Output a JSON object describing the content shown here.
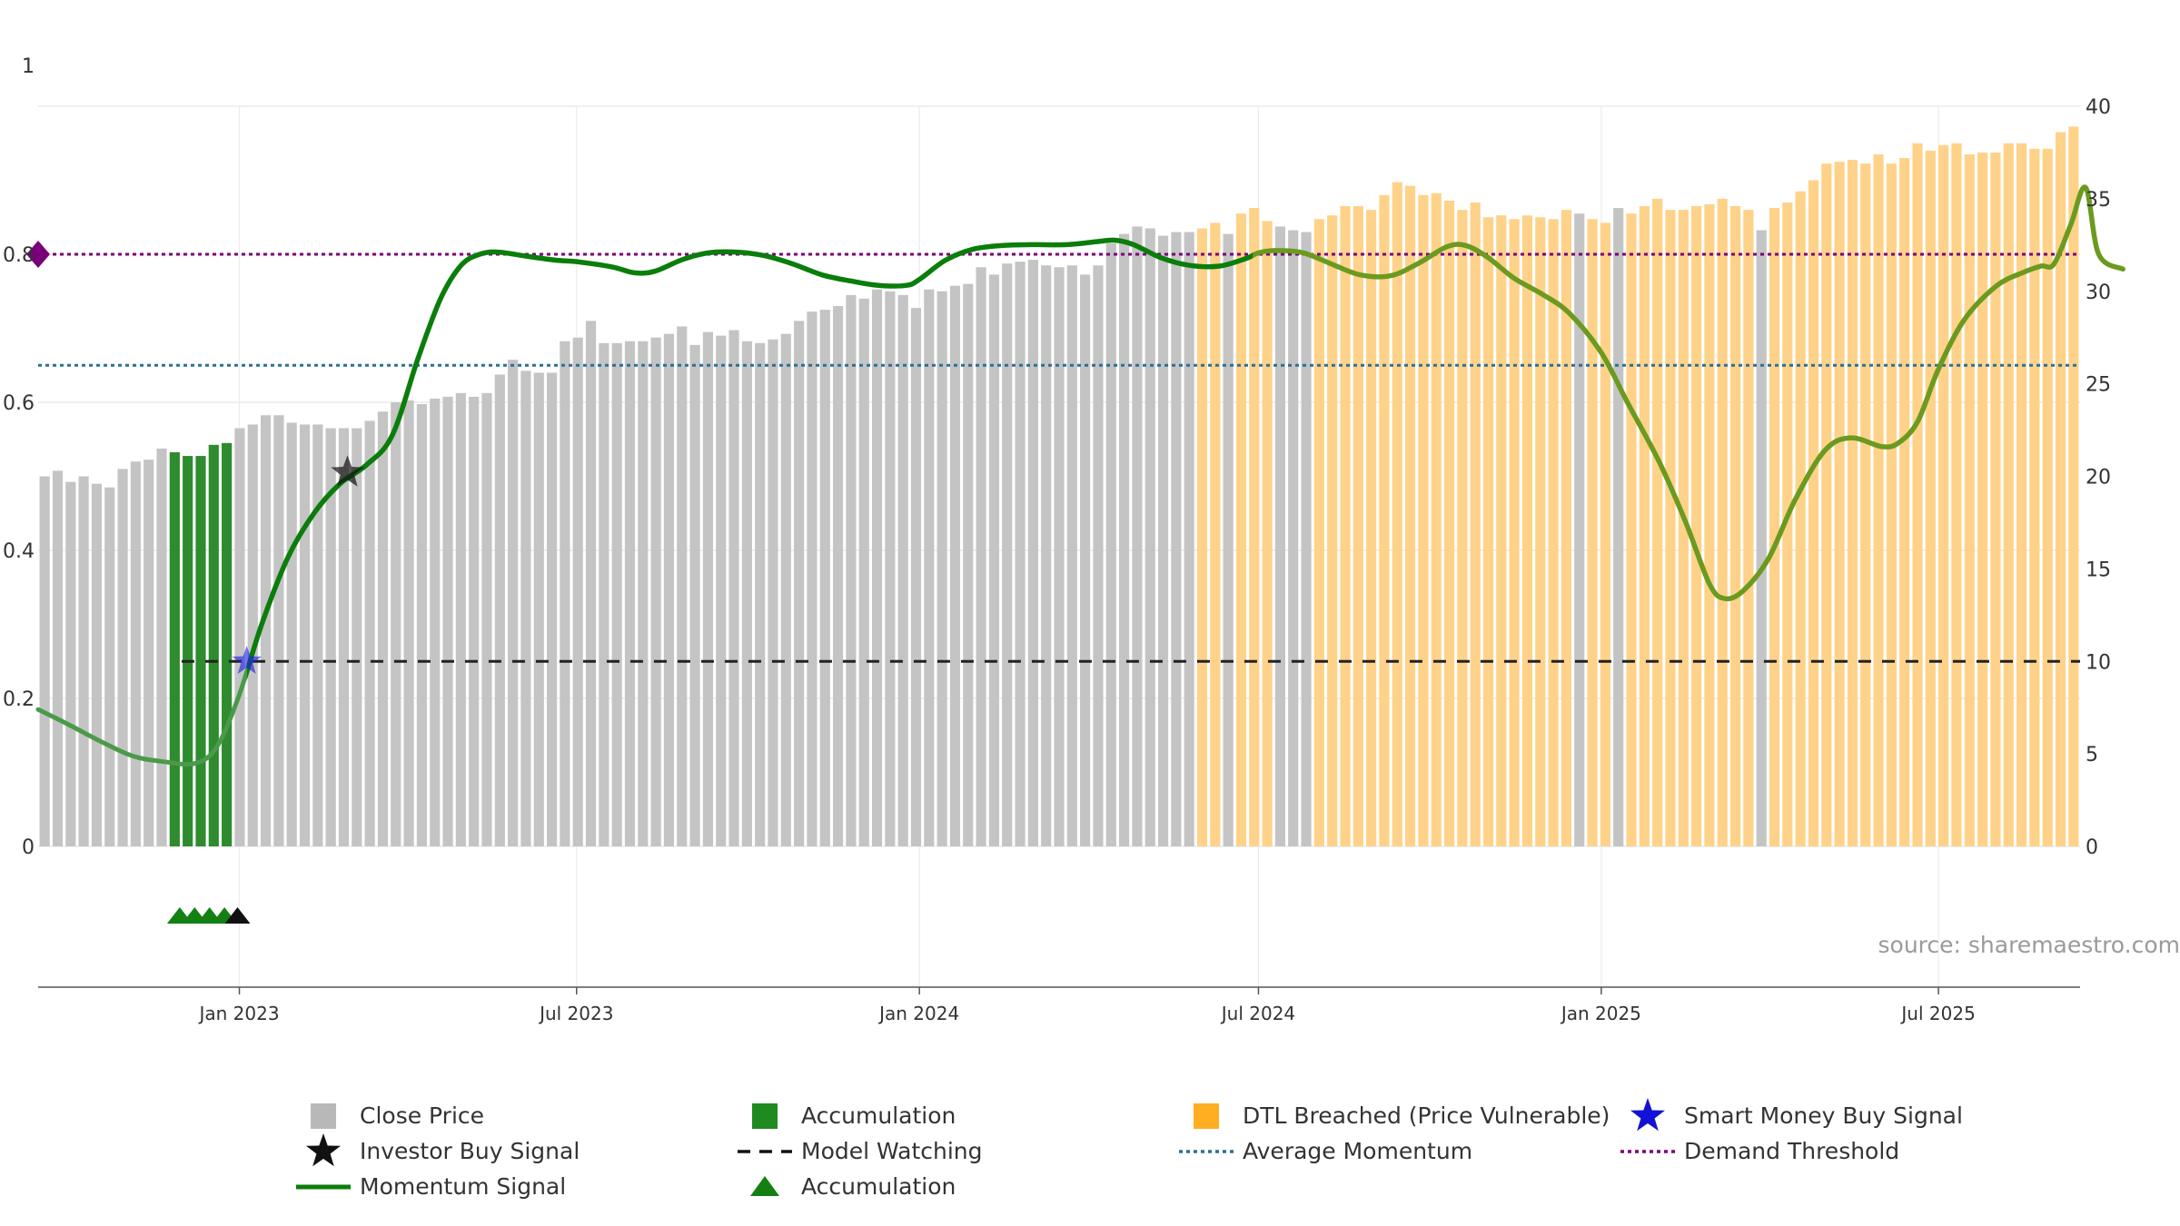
{
  "chart_data": {
    "type": "bar",
    "title": "",
    "xlabel": "",
    "y_left": {
      "ticks": [
        "0",
        "0.2",
        "0.4",
        "0.6",
        "0.8",
        "1"
      ],
      "range": [
        0,
        1
      ],
      "label": ""
    },
    "y_right": {
      "ticks": [
        "0",
        "5",
        "10",
        "15",
        "20",
        "25",
        "30",
        "35",
        "40"
      ],
      "range": [
        0,
        40
      ],
      "label": ""
    },
    "x_axis": {
      "start_date": "2022-09-15",
      "end_date": "2025-09-15",
      "ticks": [
        {
          "date": "2023-01-01",
          "label": "Jan 2023"
        },
        {
          "date": "2023-07-01",
          "label": "Jul 2023"
        },
        {
          "date": "2024-01-01",
          "label": "Jan 2024"
        },
        {
          "date": "2024-07-01",
          "label": "Jul 2024"
        },
        {
          "date": "2025-01-01",
          "label": "Jan 2025"
        },
        {
          "date": "2025-07-01",
          "label": "Jul 2025"
        }
      ]
    },
    "grid": true,
    "colors": {
      "close": "#c4c4c4",
      "accumulation": "#2e8b2e",
      "dtl": "#ffd28a",
      "momentum": "#0a7d0a",
      "momentum_dtl": "#6b9a1f",
      "average": "#2c7096",
      "demand": "#7a007a",
      "watching": "#222222",
      "smart_money": "#1a1ae6",
      "investor": "#111111",
      "marker_green": "#138013"
    },
    "close_price": [
      20,
      20.3,
      19.7,
      20,
      19.6,
      19.4,
      20.4,
      20.8,
      20.9,
      21.5,
      21.3,
      21.1,
      21.1,
      21.7,
      21.8,
      22.6,
      22.8,
      23.3,
      23.3,
      22.9,
      22.8,
      22.8,
      22.6,
      22.6,
      22.6,
      23,
      23.5,
      24,
      24.1,
      23.9,
      24.2,
      24.3,
      24.5,
      24.3,
      24.5,
      25.5,
      26.3,
      25.7,
      25.6,
      25.6,
      27.3,
      27.5,
      28.4,
      27.2,
      27.2,
      27.3,
      27.3,
      27.5,
      27.7,
      28.1,
      27.1,
      27.8,
      27.6,
      27.9,
      27.3,
      27.2,
      27.4,
      27.7,
      28.4,
      28.9,
      29,
      29.2,
      29.8,
      29.6,
      30.1,
      30,
      29.8,
      29.1,
      30.1,
      30,
      30.3,
      30.4,
      31.3,
      30.9,
      31.5,
      31.6,
      31.7,
      31.4,
      31.3,
      31.4,
      30.9,
      31.4,
      32.6,
      33.1,
      33.5,
      33.4,
      33,
      33.2,
      33.2,
      33.4,
      33.7,
      33.1,
      34.2,
      34.5,
      33.8,
      33.5,
      33.3,
      33.2,
      33.9,
      34.1,
      34.6,
      34.6,
      34.4,
      35.2,
      35.9,
      35.7,
      35.2,
      35.3,
      34.9,
      34.4,
      34.8,
      34,
      34.1,
      33.9,
      34.1,
      34,
      33.9,
      34.4,
      34.2,
      33.9,
      33.7,
      34.5,
      34.2,
      34.6,
      35,
      34.4,
      34.4,
      34.6,
      34.7,
      35,
      34.6,
      34.4,
      33.3,
      34.5,
      34.8,
      35.4,
      36,
      36.9,
      37,
      37.1,
      36.9,
      37.4,
      36.9,
      37.2,
      38,
      37.6,
      37.9,
      38,
      37.4,
      37.5,
      37.5,
      38,
      38,
      37.7,
      37.7,
      38.6,
      38.9
    ],
    "bar_categories": [
      "c",
      "c",
      "c",
      "c",
      "c",
      "c",
      "c",
      "c",
      "c",
      "c",
      "a",
      "a",
      "a",
      "a",
      "a",
      "c",
      "c",
      "c",
      "c",
      "c",
      "c",
      "c",
      "c",
      "c",
      "c",
      "c",
      "c",
      "c",
      "c",
      "c",
      "c",
      "c",
      "c",
      "c",
      "c",
      "c",
      "c",
      "c",
      "c",
      "c",
      "c",
      "c",
      "c",
      "c",
      "c",
      "c",
      "c",
      "c",
      "c",
      "c",
      "c",
      "c",
      "c",
      "c",
      "c",
      "c",
      "c",
      "c",
      "c",
      "c",
      "c",
      "c",
      "c",
      "c",
      "c",
      "c",
      "c",
      "c",
      "c",
      "c",
      "c",
      "c",
      "c",
      "c",
      "c",
      "c",
      "c",
      "c",
      "c",
      "c",
      "c",
      "c",
      "c",
      "c",
      "c",
      "c",
      "c",
      "c",
      "c",
      "d",
      "d",
      "c",
      "d",
      "d",
      "d",
      "c",
      "c",
      "c",
      "d",
      "d",
      "d",
      "d",
      "d",
      "d",
      "d",
      "d",
      "d",
      "d",
      "d",
      "d",
      "d",
      "d",
      "d",
      "d",
      "d",
      "d",
      "d",
      "d",
      "c",
      "d",
      "d",
      "c",
      "d",
      "d",
      "d",
      "d",
      "d",
      "d",
      "d",
      "d",
      "d",
      "d",
      "c",
      "d",
      "d",
      "d",
      "d",
      "d",
      "d",
      "d",
      "d",
      "d",
      "d",
      "d",
      "d",
      "d",
      "d",
      "d",
      "d",
      "d",
      "d",
      "d",
      "d",
      "d",
      "d",
      "d",
      "d"
    ],
    "momentum_signal": [
      [
        "2022-09-15",
        0.185
      ],
      [
        "2022-10-01",
        0.165
      ],
      [
        "2022-10-20",
        0.14
      ],
      [
        "2022-11-05",
        0.122
      ],
      [
        "2022-11-20",
        0.115
      ],
      [
        "2022-12-08",
        0.112
      ],
      [
        "2022-12-20",
        0.135
      ],
      [
        "2023-01-01",
        0.205
      ],
      [
        "2023-01-13",
        0.3
      ],
      [
        "2023-01-27",
        0.39
      ],
      [
        "2023-02-10",
        0.45
      ],
      [
        "2023-02-24",
        0.49
      ],
      [
        "2023-03-10",
        0.515
      ],
      [
        "2023-03-24",
        0.555
      ],
      [
        "2023-04-07",
        0.66
      ],
      [
        "2023-04-19",
        0.74
      ],
      [
        "2023-04-30",
        0.785
      ],
      [
        "2023-05-10",
        0.8
      ],
      [
        "2023-05-20",
        0.803
      ],
      [
        "2023-06-05",
        0.797
      ],
      [
        "2023-06-20",
        0.792
      ],
      [
        "2023-07-01",
        0.79
      ],
      [
        "2023-07-20",
        0.783
      ],
      [
        "2023-08-01",
        0.775
      ],
      [
        "2023-08-12",
        0.777
      ],
      [
        "2023-08-27",
        0.793
      ],
      [
        "2023-09-10",
        0.802
      ],
      [
        "2023-09-25",
        0.803
      ],
      [
        "2023-10-10",
        0.798
      ],
      [
        "2023-10-25",
        0.787
      ],
      [
        "2023-11-10",
        0.772
      ],
      [
        "2023-11-25",
        0.764
      ],
      [
        "2023-12-10",
        0.758
      ],
      [
        "2023-12-25",
        0.758
      ],
      [
        "2024-01-01",
        0.766
      ],
      [
        "2024-01-15",
        0.792
      ],
      [
        "2024-01-30",
        0.807
      ],
      [
        "2024-02-15",
        0.812
      ],
      [
        "2024-03-01",
        0.813
      ],
      [
        "2024-03-20",
        0.813
      ],
      [
        "2024-04-05",
        0.817
      ],
      [
        "2024-04-15",
        0.819
      ],
      [
        "2024-04-25",
        0.813
      ],
      [
        "2024-05-10",
        0.795
      ],
      [
        "2024-05-25",
        0.785
      ],
      [
        "2024-06-10",
        0.784
      ],
      [
        "2024-06-25",
        0.795
      ],
      [
        "2024-07-01",
        0.802
      ],
      [
        "2024-07-10",
        0.805
      ],
      [
        "2024-07-25",
        0.802
      ],
      [
        "2024-08-10",
        0.786
      ],
      [
        "2024-08-25",
        0.772
      ],
      [
        "2024-09-10",
        0.771
      ],
      [
        "2024-09-25",
        0.788
      ],
      [
        "2024-10-10",
        0.81
      ],
      [
        "2024-10-20",
        0.812
      ],
      [
        "2024-11-01",
        0.796
      ],
      [
        "2024-11-15",
        0.768
      ],
      [
        "2024-12-01",
        0.745
      ],
      [
        "2024-12-15",
        0.72
      ],
      [
        "2025-01-01",
        0.667
      ],
      [
        "2025-01-15",
        0.6
      ],
      [
        "2025-02-01",
        0.52
      ],
      [
        "2025-02-15",
        0.44
      ],
      [
        "2025-02-28",
        0.355
      ],
      [
        "2025-03-08",
        0.335
      ],
      [
        "2025-03-18",
        0.345
      ],
      [
        "2025-04-01",
        0.39
      ],
      [
        "2025-04-15",
        0.468
      ],
      [
        "2025-05-01",
        0.535
      ],
      [
        "2025-05-15",
        0.552
      ],
      [
        "2025-06-01",
        0.54
      ],
      [
        "2025-06-10",
        0.546
      ],
      [
        "2025-06-20",
        0.575
      ],
      [
        "2025-07-01",
        0.645
      ],
      [
        "2025-07-15",
        0.712
      ],
      [
        "2025-08-01",
        0.757
      ],
      [
        "2025-08-15",
        0.775
      ],
      [
        "2025-08-25",
        0.784
      ],
      [
        "2025-09-01",
        0.787
      ],
      [
        "2025-09-10",
        0.84
      ],
      [
        "2025-09-18",
        0.89
      ],
      [
        "2025-09-25",
        0.8
      ],
      [
        "2025-10-08",
        0.78
      ]
    ],
    "momentum_dtl_start": "2024-06-28",
    "average_momentum": 0.65,
    "demand_threshold": 0.8,
    "model_watching": {
      "level": 0.25,
      "from": "2022-12-01"
    },
    "smart_money_buy_signal": {
      "date": "2023-01-05",
      "y": 0.25
    },
    "investor_buy_signal": {
      "date": "2023-02-28",
      "y": 0.505
    },
    "accumulation_markers": [
      "2022-11-30",
      "2022-12-08",
      "2022-12-16",
      "2022-12-24"
    ],
    "investor_markers": [
      "2022-12-31"
    ],
    "legend": [
      {
        "label": "Close Price",
        "symbol": "square-gray"
      },
      {
        "label": "Accumulation",
        "symbol": "square-green"
      },
      {
        "label": "DTL Breached (Price Vulnerable)",
        "symbol": "square-orange"
      },
      {
        "label": "Smart Money Buy Signal",
        "symbol": "star-blue"
      },
      {
        "label": "Investor Buy Signal",
        "symbol": "star-black"
      },
      {
        "label": "Model Watching",
        "symbol": "dash-black"
      },
      {
        "label": "Average Momentum",
        "symbol": "dot-teal"
      },
      {
        "label": "Demand Threshold",
        "symbol": "dot-purple"
      },
      {
        "label": "Momentum Signal",
        "symbol": "line-green"
      },
      {
        "label": "Accumulation",
        "symbol": "triangle-green"
      }
    ],
    "legend_placement": "bottom",
    "source": "source: sharemaestro.com"
  }
}
